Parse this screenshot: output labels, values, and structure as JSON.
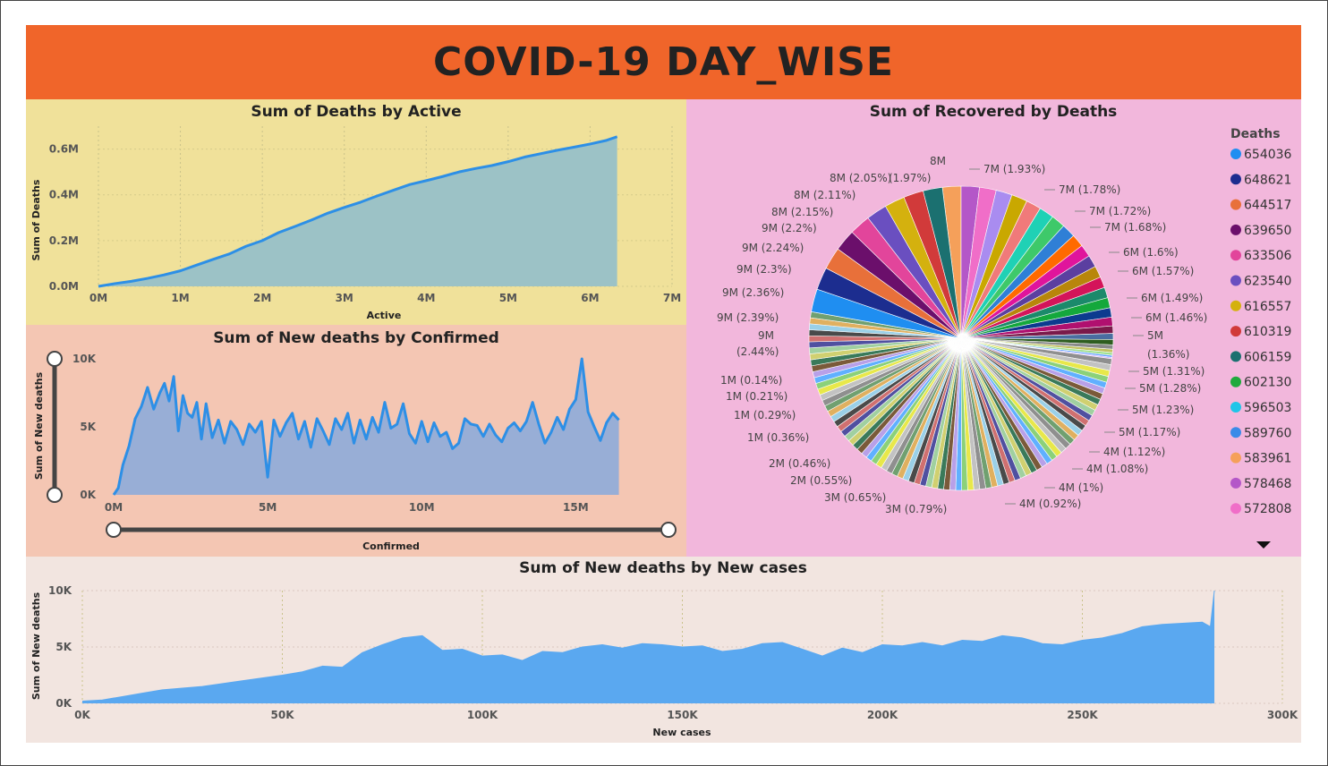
{
  "dashboard": {
    "title": "COVID-19 DAY_WISE"
  },
  "colors": {
    "header": "#f0652a",
    "line": "#2d8fe6",
    "area_active": "#9cc2c6",
    "area_confirmed": "#98aed6",
    "area_newcases": "#5aa8f0"
  },
  "chart_data": [
    {
      "type": "area",
      "title": "Sum of Deaths by Active",
      "xlabel": "Active",
      "ylabel": "Sum of Deaths",
      "xlim": [
        0,
        7000000
      ],
      "ylim": [
        0,
        700000
      ],
      "x_ticks": [
        "0M",
        "1M",
        "2M",
        "3M",
        "4M",
        "5M",
        "6M",
        "7M"
      ],
      "y_ticks": [
        "0.0M",
        "0.2M",
        "0.4M",
        "0.6M"
      ],
      "grid": true,
      "x": [
        0,
        200000,
        400000,
        600000,
        800000,
        1000000,
        1200000,
        1400000,
        1600000,
        1800000,
        2000000,
        2200000,
        2400000,
        2600000,
        2800000,
        3000000,
        3200000,
        3400000,
        3600000,
        3800000,
        4000000,
        4200000,
        4400000,
        4600000,
        4800000,
        5000000,
        5200000,
        5400000,
        5600000,
        5800000,
        6000000,
        6200000,
        6330000
      ],
      "y": [
        0,
        12000,
        22000,
        35000,
        50000,
        68000,
        93000,
        118000,
        142000,
        175000,
        200000,
        235000,
        262000,
        290000,
        320000,
        345000,
        368000,
        395000,
        420000,
        445000,
        462000,
        480000,
        500000,
        515000,
        528000,
        545000,
        565000,
        580000,
        595000,
        608000,
        622000,
        638000,
        654000
      ]
    },
    {
      "type": "area",
      "title": "Sum of New deaths by Confirmed",
      "xlabel": "Confirmed",
      "ylabel": "Sum of New deaths",
      "xlim": [
        0,
        16500000
      ],
      "ylim": [
        0,
        10000
      ],
      "x_ticks": [
        "0M",
        "5M",
        "10M",
        "15M"
      ],
      "y_ticks": [
        "0K",
        "5K",
        "10K"
      ],
      "grid": false,
      "x": [
        0,
        150000,
        300000,
        500000,
        700000,
        900000,
        1100000,
        1300000,
        1500000,
        1650000,
        1800000,
        1950000,
        2100000,
        2250000,
        2400000,
        2550000,
        2700000,
        2850000,
        3000000,
        3200000,
        3400000,
        3600000,
        3800000,
        4000000,
        4200000,
        4400000,
        4600000,
        4800000,
        5000000,
        5200000,
        5400000,
        5600000,
        5800000,
        6000000,
        6200000,
        6400000,
        6600000,
        6800000,
        7000000,
        7200000,
        7400000,
        7600000,
        7800000,
        8000000,
        8200000,
        8400000,
        8600000,
        8800000,
        9000000,
        9200000,
        9400000,
        9600000,
        9800000,
        10000000,
        10200000,
        10400000,
        10600000,
        10800000,
        11000000,
        11200000,
        11400000,
        11600000,
        11800000,
        12000000,
        12200000,
        12400000,
        12600000,
        12800000,
        13000000,
        13200000,
        13400000,
        13600000,
        13800000,
        14000000,
        14200000,
        14400000,
        14600000,
        14800000,
        15000000,
        15200000,
        15400000,
        15600000,
        15800000,
        16000000,
        16200000,
        16400000
      ],
      "y": [
        0,
        500,
        2200,
        3600,
        5600,
        6500,
        7900,
        6300,
        7500,
        8200,
        6900,
        8700,
        4700,
        7300,
        6000,
        5700,
        6800,
        4100,
        6700,
        4200,
        5500,
        3800,
        5400,
        4800,
        3700,
        5200,
        4600,
        5400,
        1300,
        5500,
        4300,
        5300,
        6000,
        4100,
        5400,
        3500,
        5600,
        4700,
        3700,
        5600,
        4800,
        6000,
        3800,
        5500,
        4100,
        5700,
        4600,
        6800,
        4900,
        5200,
        6700,
        4500,
        3800,
        5400,
        3900,
        5300,
        4300,
        4600,
        3400,
        3800,
        5600,
        5200,
        5100,
        4300,
        5200,
        4400,
        3900,
        4900,
        5300,
        4700,
        5400,
        6800,
        5200,
        3800,
        4600,
        5700,
        4800,
        6300,
        7000,
        10000,
        6100,
        5000,
        4000,
        5300,
        6000,
        5500
      ],
      "slider_x": [
        0,
        16500000
      ],
      "slider_y": [
        0,
        10000
      ]
    },
    {
      "type": "pie",
      "title": "Sum of Recovered by Deaths",
      "legend_title": "Deaths",
      "legend_position": "right",
      "legend": [
        {
          "label": "654036",
          "color": "#1f8ef1"
        },
        {
          "label": "648621",
          "color": "#1c2d8f"
        },
        {
          "label": "644517",
          "color": "#e8703a"
        },
        {
          "label": "639650",
          "color": "#6b0f6b"
        },
        {
          "label": "633506",
          "color": "#e2459b"
        },
        {
          "label": "623540",
          "color": "#6a4fc0"
        },
        {
          "label": "616557",
          "color": "#d4b10e"
        },
        {
          "label": "610319",
          "color": "#d13a3a"
        },
        {
          "label": "606159",
          "color": "#1b7070"
        },
        {
          "label": "602130",
          "color": "#1faa3c"
        },
        {
          "label": "596503",
          "color": "#1fc5e8"
        },
        {
          "label": "589760",
          "color": "#3a8be8"
        },
        {
          "label": "583961",
          "color": "#f5a05a"
        },
        {
          "label": "578468",
          "color": "#b457c8"
        },
        {
          "label": "572808",
          "color": "#f06ec8"
        }
      ],
      "slice_labels_right": [
        "7M (1.93%)",
        "7M (1.78%)",
        "7M (1.72%)",
        "7M (1.68%)",
        "6M (1.6%)",
        "6M (1.57%)",
        "6M (1.49%)",
        "6M (1.46%)",
        "5M",
        "(1.36%)",
        "5M (1.31%)",
        "5M (1.28%)",
        "5M (1.23%)",
        "5M (1.17%)",
        "4M (1.12%)",
        "4M (1.08%)",
        "4M (1%)",
        "4M (0.92%)"
      ],
      "slice_labels_left": [
        "8M",
        "8M (2.05%)",
        "(1.97%)",
        "8M (2.11%)",
        "8M (2.15%)",
        "9M (2.2%)",
        "9M (2.24%)",
        "9M (2.3%)",
        "9M (2.36%)",
        "9M (2.39%)",
        "9M",
        "(2.44%)",
        "1M (0.14%)",
        "1M (0.21%)",
        "1M (0.29%)",
        "1M (0.36%)",
        "2M (0.46%)",
        "2M (0.55%)",
        "3M (0.65%)",
        "3M (0.79%)"
      ],
      "percent_values": [
        1.97,
        1.93,
        1.78,
        1.72,
        1.68,
        1.6,
        1.57,
        1.49,
        1.46,
        1.36,
        1.31,
        1.28,
        1.23,
        1.17,
        1.12,
        1.08,
        1.0,
        0.92,
        0.79,
        0.65,
        0.55,
        0.46,
        0.36,
        0.29,
        0.21,
        0.14,
        2.44,
        2.39,
        2.36,
        2.3,
        2.24,
        2.2,
        2.15,
        2.11,
        2.05
      ]
    },
    {
      "type": "area",
      "title": "Sum of New deaths by New cases",
      "xlabel": "New cases",
      "ylabel": "Sum of New deaths",
      "xlim": [
        0,
        300000
      ],
      "ylim": [
        0,
        10000
      ],
      "x_ticks": [
        "0K",
        "50K",
        "100K",
        "150K",
        "200K",
        "250K",
        "300K"
      ],
      "y_ticks": [
        "0K",
        "5K",
        "10K"
      ],
      "grid": true,
      "x": [
        0,
        5000,
        10000,
        15000,
        20000,
        30000,
        40000,
        50000,
        55000,
        60000,
        65000,
        70000,
        75000,
        80000,
        85000,
        90000,
        95000,
        100000,
        105000,
        110000,
        115000,
        120000,
        125000,
        130000,
        135000,
        140000,
        145000,
        150000,
        155000,
        160000,
        165000,
        170000,
        175000,
        180000,
        185000,
        190000,
        195000,
        200000,
        205000,
        210000,
        215000,
        220000,
        225000,
        230000,
        235000,
        240000,
        245000,
        250000,
        255000,
        260000,
        265000,
        270000,
        275000,
        280000,
        282000,
        283000
      ],
      "y": [
        200,
        300,
        600,
        900,
        1200,
        1500,
        2000,
        2500,
        2800,
        3300,
        3200,
        4500,
        5200,
        5800,
        6000,
        4700,
        4800,
        4200,
        4300,
        3800,
        4600,
        4500,
        5000,
        5200,
        4900,
        5300,
        5200,
        5000,
        5100,
        4600,
        4800,
        5300,
        5400,
        4800,
        4200,
        4900,
        4500,
        5200,
        5100,
        5400,
        5100,
        5600,
        5500,
        6000,
        5800,
        5300,
        5200,
        5600,
        5800,
        6200,
        6800,
        7000,
        7100,
        7200,
        6800,
        10000
      ]
    }
  ]
}
